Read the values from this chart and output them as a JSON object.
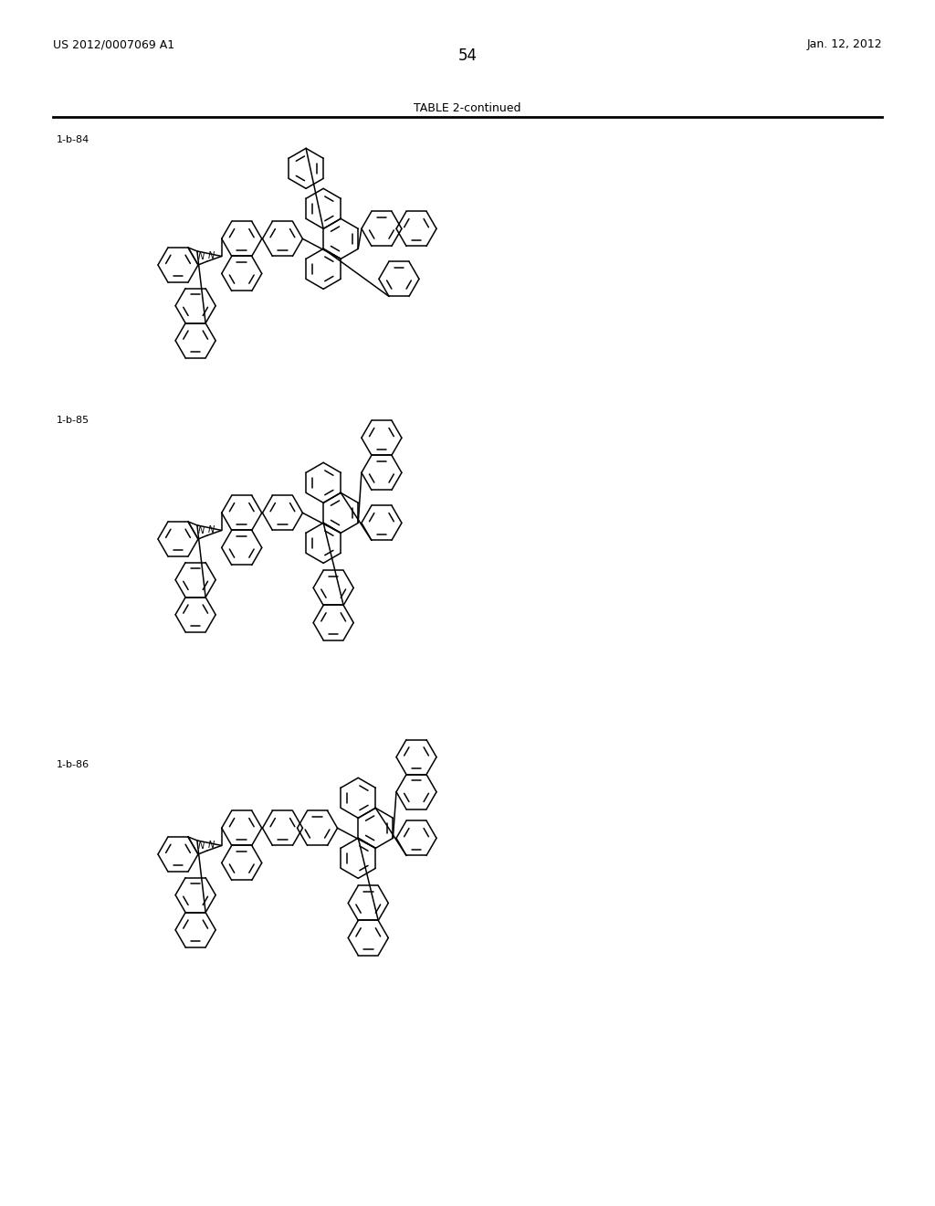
{
  "page_number": "54",
  "header_left": "US 2012/0007069 A1",
  "header_right": "Jan. 12, 2012",
  "table_title": "TABLE 2-continued",
  "compound_labels": [
    "1-b-84",
    "1-b-85",
    "1-b-86"
  ],
  "background_color": "#ffffff",
  "line_color": "#000000",
  "font_color": "#000000",
  "r": 22
}
